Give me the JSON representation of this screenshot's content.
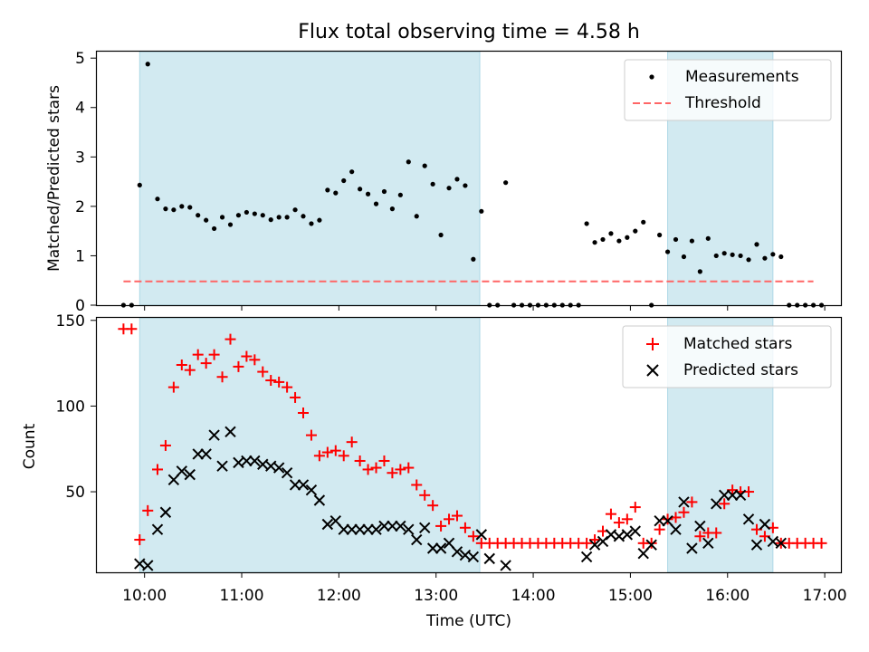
{
  "title": "Flux total observing time = 4.58 h",
  "colors": {
    "shade": "#add8e6",
    "measurement": "#000000",
    "threshold": "#ff6666",
    "matched": "#ff0000",
    "predicted": "#000000"
  },
  "chart_data": [
    {
      "type": "scatter",
      "ylabel": "Matched/Predicted stars",
      "ylim": [
        0,
        5.15
      ],
      "y_ticks": [
        "0",
        "1",
        "2",
        "3",
        "4",
        "5"
      ],
      "legend": {
        "placement": "upper right",
        "entries": [
          "Measurements",
          "Threshold"
        ]
      },
      "threshold": {
        "y": 0.48,
        "x_range": [
          "09:47",
          "16:53"
        ]
      },
      "shaded_spans": [
        [
          "09:57",
          "13:27"
        ],
        [
          "15:23",
          "16:28"
        ]
      ],
      "series": [
        {
          "name": "Measurements",
          "points": [
            [
              "09:47",
              0
            ],
            [
              "09:52",
              0
            ],
            [
              "09:57",
              2.43
            ],
            [
              "10:02",
              4.88
            ],
            [
              "10:08",
              2.15
            ],
            [
              "10:13",
              1.95
            ],
            [
              "10:18",
              1.93
            ],
            [
              "10:23",
              2.0
            ],
            [
              "10:28",
              1.98
            ],
            [
              "10:33",
              1.82
            ],
            [
              "10:38",
              1.72
            ],
            [
              "10:43",
              1.55
            ],
            [
              "10:48",
              1.78
            ],
            [
              "10:53",
              1.63
            ],
            [
              "10:58",
              1.82
            ],
            [
              "11:03",
              1.88
            ],
            [
              "11:08",
              1.85
            ],
            [
              "11:13",
              1.82
            ],
            [
              "11:18",
              1.73
            ],
            [
              "11:23",
              1.78
            ],
            [
              "11:28",
              1.78
            ],
            [
              "11:33",
              1.93
            ],
            [
              "11:38",
              1.8
            ],
            [
              "11:43",
              1.65
            ],
            [
              "11:48",
              1.72
            ],
            [
              "11:53",
              2.33
            ],
            [
              "11:58",
              2.27
            ],
            [
              "12:03",
              2.52
            ],
            [
              "12:08",
              2.7
            ],
            [
              "12:13",
              2.35
            ],
            [
              "12:18",
              2.25
            ],
            [
              "12:23",
              2.05
            ],
            [
              "12:28",
              2.3
            ],
            [
              "12:33",
              1.95
            ],
            [
              "12:38",
              2.23
            ],
            [
              "12:43",
              2.9
            ],
            [
              "12:48",
              1.8
            ],
            [
              "12:53",
              2.82
            ],
            [
              "12:58",
              2.45
            ],
            [
              "13:03",
              1.42
            ],
            [
              "13:08",
              2.37
            ],
            [
              "13:13",
              2.55
            ],
            [
              "13:18",
              2.42
            ],
            [
              "13:23",
              0.93
            ],
            [
              "13:28",
              1.9
            ],
            [
              "13:33",
              0
            ],
            [
              "13:38",
              0
            ],
            [
              "13:43",
              2.48
            ],
            [
              "13:48",
              0
            ],
            [
              "13:53",
              0
            ],
            [
              "13:58",
              0
            ],
            [
              "14:03",
              0
            ],
            [
              "14:08",
              0
            ],
            [
              "14:13",
              0
            ],
            [
              "14:18",
              0
            ],
            [
              "14:23",
              0
            ],
            [
              "14:28",
              0
            ],
            [
              "14:33",
              1.65
            ],
            [
              "14:38",
              1.27
            ],
            [
              "14:43",
              1.33
            ],
            [
              "14:48",
              1.45
            ],
            [
              "14:53",
              1.3
            ],
            [
              "14:58",
              1.37
            ],
            [
              "15:03",
              1.5
            ],
            [
              "15:08",
              1.68
            ],
            [
              "15:13",
              0
            ],
            [
              "15:18",
              1.42
            ],
            [
              "15:23",
              1.08
            ],
            [
              "15:28",
              1.33
            ],
            [
              "15:33",
              0.98
            ],
            [
              "15:38",
              1.3
            ],
            [
              "15:43",
              0.68
            ],
            [
              "15:48",
              1.35
            ],
            [
              "15:53",
              1.0
            ],
            [
              "15:58",
              1.05
            ],
            [
              "16:03",
              1.02
            ],
            [
              "16:08",
              1.0
            ],
            [
              "16:13",
              0.92
            ],
            [
              "16:18",
              1.23
            ],
            [
              "16:23",
              0.95
            ],
            [
              "16:28",
              1.03
            ],
            [
              "16:33",
              0.98
            ],
            [
              "16:38",
              0
            ],
            [
              "16:43",
              0
            ],
            [
              "16:48",
              0
            ],
            [
              "16:53",
              0
            ],
            [
              "16:58",
              0
            ]
          ]
        }
      ]
    },
    {
      "type": "scatter",
      "xlabel": "Time (UTC)",
      "ylabel": "Count",
      "ylim": [
        3,
        152
      ],
      "y_ticks": [
        "50",
        "100",
        "150"
      ],
      "x_ticks": [
        "10:00",
        "11:00",
        "12:00",
        "13:00",
        "14:00",
        "15:00",
        "16:00",
        "17:00"
      ],
      "xlim": [
        "09:30",
        "17:10"
      ],
      "legend": {
        "placement": "upper right",
        "entries": [
          "Matched stars",
          "Predicted stars"
        ]
      },
      "shaded_spans": [
        [
          "09:57",
          "13:27"
        ],
        [
          "15:23",
          "16:28"
        ]
      ],
      "series": [
        {
          "name": "Matched stars",
          "marker": "+",
          "points": [
            [
              "09:47",
              145
            ],
            [
              "09:52",
              145
            ],
            [
              "09:57",
              22
            ],
            [
              "10:02",
              39
            ],
            [
              "10:08",
              63
            ],
            [
              "10:13",
              77
            ],
            [
              "10:18",
              111
            ],
            [
              "10:23",
              124
            ],
            [
              "10:28",
              121
            ],
            [
              "10:33",
              130
            ],
            [
              "10:38",
              125
            ],
            [
              "10:43",
              130
            ],
            [
              "10:48",
              117
            ],
            [
              "10:53",
              139
            ],
            [
              "10:58",
              123
            ],
            [
              "11:03",
              129
            ],
            [
              "11:08",
              127
            ],
            [
              "11:13",
              120
            ],
            [
              "11:18",
              115
            ],
            [
              "11:23",
              114
            ],
            [
              "11:28",
              111
            ],
            [
              "11:33",
              105
            ],
            [
              "11:38",
              96
            ],
            [
              "11:43",
              83
            ],
            [
              "11:48",
              71
            ],
            [
              "11:53",
              73
            ],
            [
              "11:58",
              74
            ],
            [
              "12:03",
              71
            ],
            [
              "12:08",
              79
            ],
            [
              "12:13",
              68
            ],
            [
              "12:18",
              63
            ],
            [
              "12:23",
              64
            ],
            [
              "12:28",
              68
            ],
            [
              "12:33",
              61
            ],
            [
              "12:38",
              63
            ],
            [
              "12:43",
              64
            ],
            [
              "12:48",
              54
            ],
            [
              "12:53",
              48
            ],
            [
              "12:58",
              42
            ],
            [
              "13:03",
              30
            ],
            [
              "13:08",
              34
            ],
            [
              "13:13",
              36
            ],
            [
              "13:18",
              29
            ],
            [
              "13:23",
              24
            ],
            [
              "13:28",
              20
            ],
            [
              "13:33",
              20
            ],
            [
              "13:38",
              20
            ],
            [
              "13:43",
              20
            ],
            [
              "13:48",
              20
            ],
            [
              "13:53",
              20
            ],
            [
              "13:58",
              20
            ],
            [
              "14:03",
              20
            ],
            [
              "14:08",
              20
            ],
            [
              "14:13",
              20
            ],
            [
              "14:18",
              20
            ],
            [
              "14:23",
              20
            ],
            [
              "14:28",
              20
            ],
            [
              "14:33",
              20
            ],
            [
              "14:38",
              22
            ],
            [
              "14:43",
              27
            ],
            [
              "14:48",
              37
            ],
            [
              "14:53",
              32
            ],
            [
              "14:58",
              34
            ],
            [
              "15:03",
              41
            ],
            [
              "15:08",
              20
            ],
            [
              "15:13",
              20
            ],
            [
              "15:18",
              28
            ],
            [
              "15:23",
              34
            ],
            [
              "15:28",
              35
            ],
            [
              "15:33",
              38
            ],
            [
              "15:38",
              44
            ],
            [
              "15:43",
              24
            ],
            [
              "15:48",
              26
            ],
            [
              "15:53",
              26
            ],
            [
              "15:58",
              43
            ],
            [
              "16:03",
              51
            ],
            [
              "16:08",
              50
            ],
            [
              "16:13",
              50
            ],
            [
              "16:18",
              28
            ],
            [
              "16:23",
              24
            ],
            [
              "16:28",
              29
            ],
            [
              "16:33",
              20
            ],
            [
              "16:38",
              20
            ],
            [
              "16:43",
              20
            ],
            [
              "16:48",
              20
            ],
            [
              "16:53",
              20
            ],
            [
              "16:58",
              20
            ]
          ]
        },
        {
          "name": "Predicted stars",
          "marker": "x",
          "points": [
            [
              "09:57",
              8
            ],
            [
              "10:02",
              7
            ],
            [
              "10:08",
              28
            ],
            [
              "10:13",
              38
            ],
            [
              "10:18",
              57
            ],
            [
              "10:23",
              62
            ],
            [
              "10:28",
              60
            ],
            [
              "10:33",
              72
            ],
            [
              "10:38",
              72
            ],
            [
              "10:43",
              83
            ],
            [
              "10:48",
              65
            ],
            [
              "10:53",
              85
            ],
            [
              "10:58",
              67
            ],
            [
              "11:03",
              68
            ],
            [
              "11:08",
              68
            ],
            [
              "11:13",
              66
            ],
            [
              "11:18",
              65
            ],
            [
              "11:23",
              64
            ],
            [
              "11:28",
              61
            ],
            [
              "11:33",
              54
            ],
            [
              "11:38",
              54
            ],
            [
              "11:43",
              51
            ],
            [
              "11:48",
              45
            ],
            [
              "11:53",
              31
            ],
            [
              "11:58",
              33
            ],
            [
              "12:03",
              28
            ],
            [
              "12:08",
              28
            ],
            [
              "12:13",
              28
            ],
            [
              "12:18",
              28
            ],
            [
              "12:23",
              28
            ],
            [
              "12:28",
              30
            ],
            [
              "12:33",
              30
            ],
            [
              "12:38",
              30
            ],
            [
              "12:43",
              28
            ],
            [
              "12:48",
              22
            ],
            [
              "12:53",
              29
            ],
            [
              "12:58",
              17
            ],
            [
              "13:03",
              17
            ],
            [
              "13:08",
              20
            ],
            [
              "13:13",
              15
            ],
            [
              "13:18",
              13
            ],
            [
              "13:23",
              12
            ],
            [
              "13:28",
              25
            ],
            [
              "13:33",
              11
            ],
            [
              "13:43",
              7
            ],
            [
              "14:33",
              12
            ],
            [
              "14:38",
              19
            ],
            [
              "14:43",
              21
            ],
            [
              "14:48",
              25
            ],
            [
              "14:53",
              24
            ],
            [
              "14:58",
              25
            ],
            [
              "15:03",
              27
            ],
            [
              "15:08",
              14
            ],
            [
              "15:13",
              19
            ],
            [
              "15:18",
              33
            ],
            [
              "15:23",
              33
            ],
            [
              "15:28",
              28
            ],
            [
              "15:33",
              44
            ],
            [
              "15:38",
              17
            ],
            [
              "15:43",
              30
            ],
            [
              "15:48",
              20
            ],
            [
              "15:53",
              43
            ],
            [
              "15:58",
              48
            ],
            [
              "16:03",
              48
            ],
            [
              "16:08",
              48
            ],
            [
              "16:13",
              34
            ],
            [
              "16:18",
              19
            ],
            [
              "16:23",
              31
            ],
            [
              "16:28",
              21
            ],
            [
              "16:33",
              20
            ]
          ]
        }
      ]
    }
  ]
}
